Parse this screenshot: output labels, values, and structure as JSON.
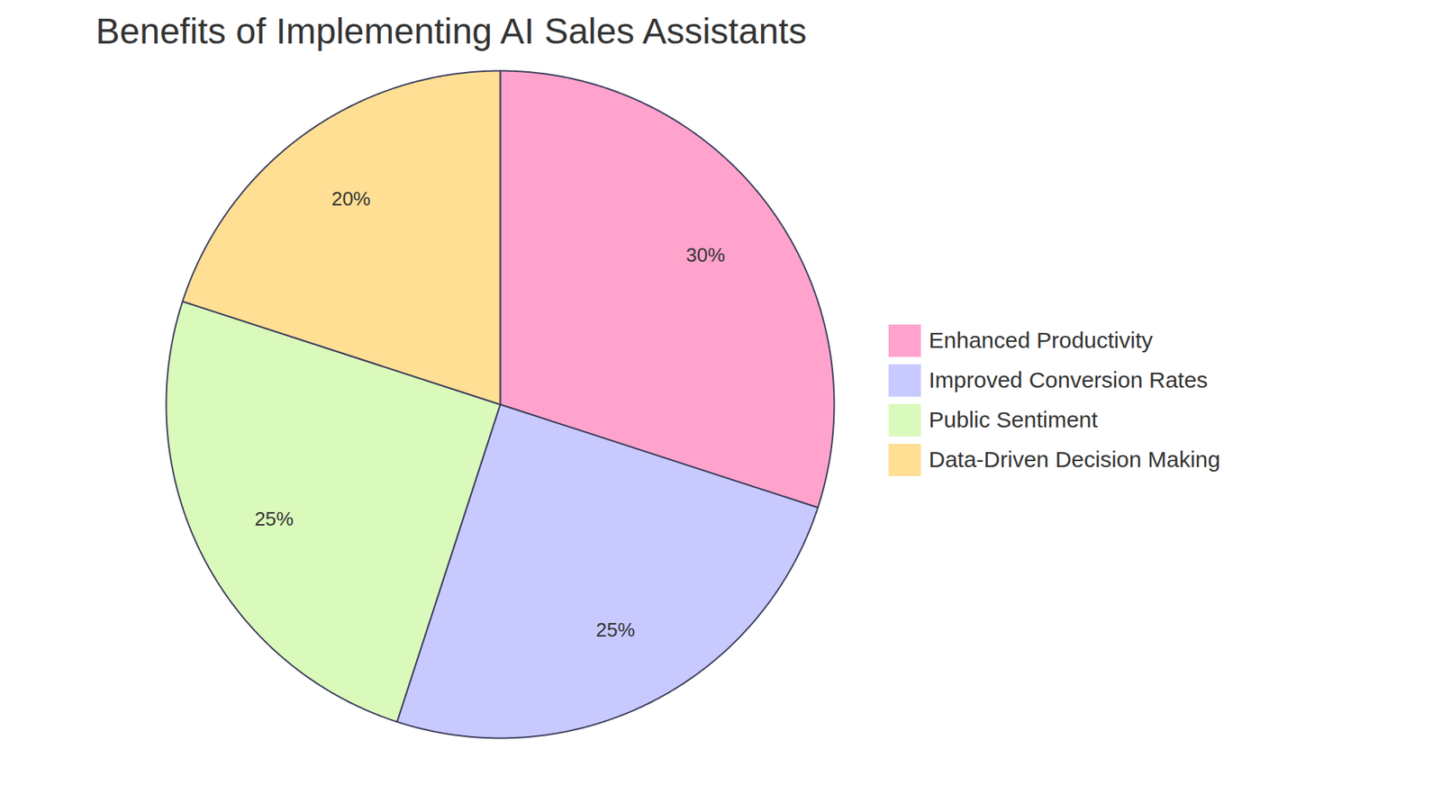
{
  "chart_data": {
    "type": "pie",
    "title": "Benefits of Implementing AI Sales Assistants",
    "categories": [
      "Enhanced Productivity",
      "Improved Conversion Rates",
      "Public Sentiment",
      "Data-Driven Decision Making"
    ],
    "values": [
      30,
      25,
      25,
      20
    ],
    "value_labels": [
      "30%",
      "25%",
      "25%",
      "20%"
    ],
    "colors": [
      "#ffa3cd",
      "#c8caff",
      "#dafabb",
      "#fedf94"
    ],
    "data_labels": true,
    "legend": "right"
  }
}
